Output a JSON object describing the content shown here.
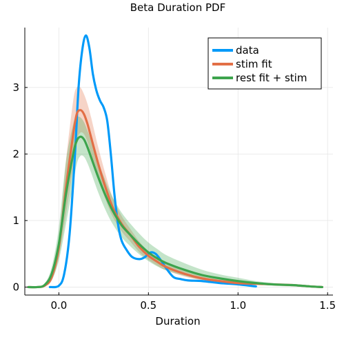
{
  "chart_data": {
    "type": "line",
    "title": "Beta Duration PDF",
    "xlabel": "Duration",
    "ylabel": "",
    "xlim": [
      -0.19,
      1.53
    ],
    "ylim": [
      -0.12,
      3.9
    ],
    "xticks": [
      0.0,
      0.5,
      1.0,
      1.5
    ],
    "xtick_labels": [
      "0.0",
      "0.5",
      "1.0",
      "1.5"
    ],
    "yticks": [
      0,
      1,
      2,
      3
    ],
    "ytick_labels": [
      "0",
      "1",
      "2",
      "3"
    ],
    "grid": true,
    "legend_position": "top-right",
    "series": [
      {
        "name": "data",
        "color": "#009af9",
        "x": [
          -0.05,
          0.0,
          0.03,
          0.06,
          0.09,
          0.11,
          0.13,
          0.15,
          0.17,
          0.19,
          0.21,
          0.23,
          0.25,
          0.27,
          0.29,
          0.31,
          0.33,
          0.35,
          0.38,
          0.41,
          0.45,
          0.48,
          0.51,
          0.54,
          0.57,
          0.6,
          0.64,
          0.68,
          0.72,
          0.8,
          0.9,
          1.0,
          1.1
        ],
        "y": [
          0.0,
          0.02,
          0.2,
          0.8,
          2.0,
          3.0,
          3.55,
          3.78,
          3.6,
          3.2,
          2.95,
          2.8,
          2.7,
          2.5,
          2.0,
          1.4,
          0.95,
          0.7,
          0.55,
          0.45,
          0.42,
          0.45,
          0.52,
          0.5,
          0.4,
          0.28,
          0.15,
          0.12,
          0.1,
          0.09,
          0.06,
          0.04,
          0.01
        ]
      },
      {
        "name": "stim fit",
        "color": "#e26f46",
        "x": [
          -0.17,
          -0.12,
          -0.08,
          -0.04,
          0.0,
          0.04,
          0.08,
          0.1,
          0.12,
          0.14,
          0.16,
          0.18,
          0.22,
          0.26,
          0.3,
          0.35,
          0.4,
          0.45,
          0.5,
          0.55,
          0.6,
          0.7,
          0.8,
          0.9,
          1.0,
          1.1,
          1.2,
          1.3,
          1.4,
          1.47
        ],
        "y": [
          0.0,
          0.0,
          0.02,
          0.15,
          0.6,
          1.5,
          2.3,
          2.6,
          2.66,
          2.6,
          2.45,
          2.25,
          1.85,
          1.5,
          1.2,
          0.95,
          0.78,
          0.6,
          0.47,
          0.38,
          0.3,
          0.2,
          0.13,
          0.09,
          0.06,
          0.05,
          0.04,
          0.03,
          0.01,
          0.0
        ],
        "band_upper": [
          0.0,
          0.0,
          0.03,
          0.2,
          0.75,
          1.9,
          2.8,
          3.0,
          3.0,
          2.9,
          2.75,
          2.55,
          2.1,
          1.7,
          1.35,
          1.07,
          0.87,
          0.68,
          0.54,
          0.44,
          0.36,
          0.24,
          0.16,
          0.11,
          0.08,
          0.06,
          0.05,
          0.04,
          0.02,
          0.0
        ],
        "band_lower": [
          0.0,
          0.0,
          0.01,
          0.1,
          0.45,
          1.1,
          1.8,
          2.2,
          2.32,
          2.3,
          2.18,
          2.0,
          1.62,
          1.32,
          1.06,
          0.84,
          0.68,
          0.52,
          0.41,
          0.32,
          0.25,
          0.16,
          0.1,
          0.07,
          0.05,
          0.04,
          0.03,
          0.02,
          0.01,
          0.0
        ]
      },
      {
        "name": "rest fit + stim",
        "color": "#3da44d",
        "x": [
          -0.17,
          -0.12,
          -0.08,
          -0.04,
          0.0,
          0.04,
          0.08,
          0.1,
          0.12,
          0.14,
          0.16,
          0.18,
          0.22,
          0.26,
          0.3,
          0.35,
          0.4,
          0.45,
          0.5,
          0.55,
          0.6,
          0.7,
          0.8,
          0.9,
          1.0,
          1.1,
          1.2,
          1.3,
          1.4,
          1.47
        ],
        "y": [
          0.0,
          0.0,
          0.03,
          0.2,
          0.65,
          1.4,
          2.0,
          2.2,
          2.26,
          2.22,
          2.1,
          1.95,
          1.65,
          1.38,
          1.15,
          0.93,
          0.78,
          0.64,
          0.52,
          0.43,
          0.36,
          0.26,
          0.18,
          0.13,
          0.09,
          0.06,
          0.04,
          0.03,
          0.01,
          0.0
        ],
        "band_upper": [
          0.0,
          0.0,
          0.05,
          0.3,
          0.9,
          1.9,
          2.45,
          2.55,
          2.55,
          2.48,
          2.35,
          2.2,
          1.88,
          1.6,
          1.35,
          1.12,
          0.95,
          0.8,
          0.67,
          0.57,
          0.48,
          0.36,
          0.26,
          0.19,
          0.14,
          0.09,
          0.06,
          0.04,
          0.02,
          0.0
        ],
        "band_lower": [
          0.0,
          0.0,
          0.01,
          0.1,
          0.4,
          0.95,
          1.55,
          1.85,
          1.97,
          1.96,
          1.86,
          1.72,
          1.42,
          1.16,
          0.95,
          0.75,
          0.61,
          0.49,
          0.39,
          0.31,
          0.25,
          0.17,
          0.11,
          0.08,
          0.05,
          0.04,
          0.02,
          0.01,
          0.005,
          0.0
        ]
      }
    ]
  }
}
